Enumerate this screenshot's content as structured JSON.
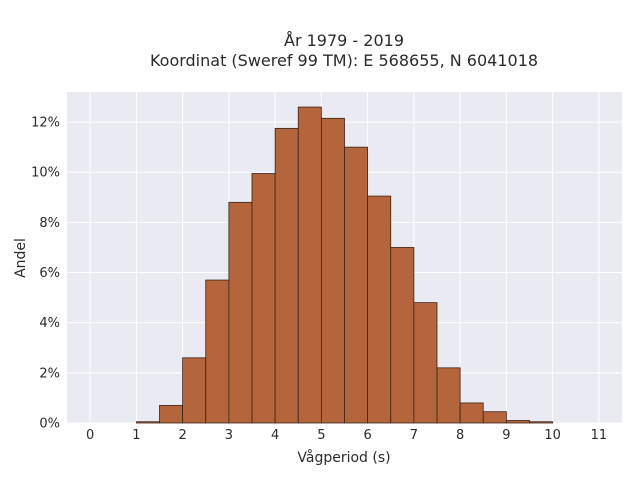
{
  "chart_data": {
    "type": "bar",
    "title_line1": "År 1979 - 2019",
    "title_line2": "Koordinat (Sweref 99 TM): E 568655, N 6041018",
    "xlabel": "Vågperiod (s)",
    "ylabel": "Andel",
    "xlim": [
      -0.5,
      11.5
    ],
    "ylim": [
      0,
      13.2
    ],
    "xticks": [
      0,
      1,
      2,
      3,
      4,
      5,
      6,
      7,
      8,
      9,
      10,
      11
    ],
    "yticks": [
      0,
      2,
      4,
      6,
      8,
      10,
      12
    ],
    "ytick_labels": [
      "0%",
      "2%",
      "4%",
      "6%",
      "8%",
      "10%",
      "12%"
    ],
    "bin_width": 0.5,
    "bins": [
      {
        "x0": 1.0,
        "value": 0.05
      },
      {
        "x0": 1.5,
        "value": 0.7
      },
      {
        "x0": 2.0,
        "value": 2.6
      },
      {
        "x0": 2.5,
        "value": 5.7
      },
      {
        "x0": 3.0,
        "value": 8.8
      },
      {
        "x0": 3.5,
        "value": 9.95
      },
      {
        "x0": 4.0,
        "value": 11.75
      },
      {
        "x0": 4.5,
        "value": 12.6
      },
      {
        "x0": 5.0,
        "value": 12.15
      },
      {
        "x0": 5.5,
        "value": 11.0
      },
      {
        "x0": 6.0,
        "value": 9.05
      },
      {
        "x0": 6.5,
        "value": 7.0
      },
      {
        "x0": 7.0,
        "value": 4.8
      },
      {
        "x0": 7.5,
        "value": 2.2
      },
      {
        "x0": 8.0,
        "value": 0.8
      },
      {
        "x0": 8.5,
        "value": 0.45
      },
      {
        "x0": 9.0,
        "value": 0.1
      },
      {
        "x0": 9.5,
        "value": 0.05
      }
    ],
    "grid": true,
    "colors": {
      "bar_fill": "#b5653c",
      "bar_edge": "#3d2418",
      "plot_bg": "#e9eaf2",
      "grid": "#ffffff"
    }
  }
}
